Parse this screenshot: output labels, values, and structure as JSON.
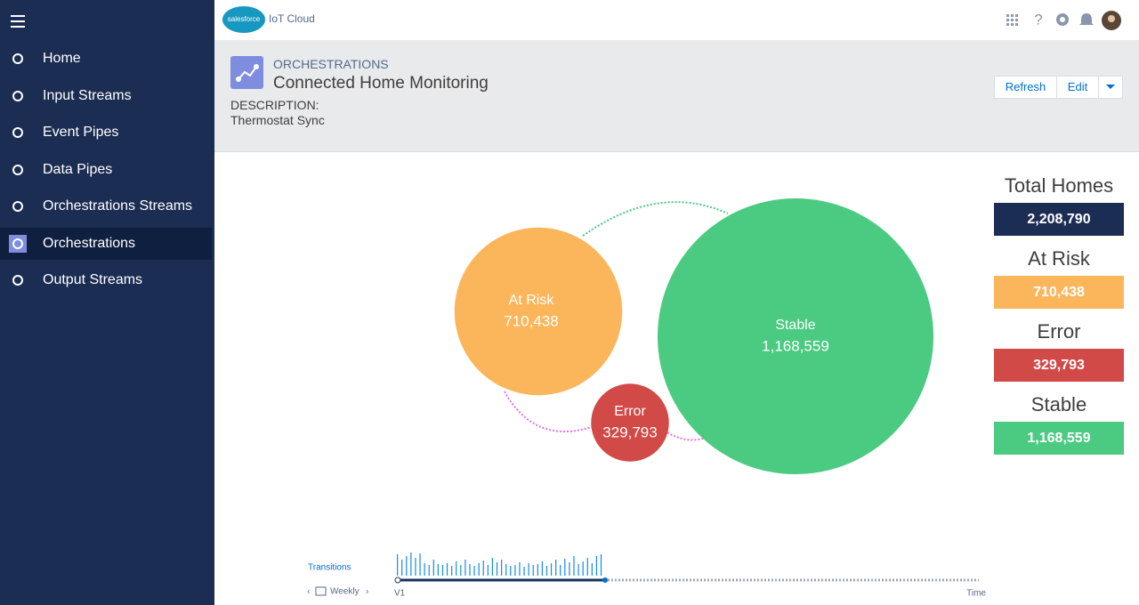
{
  "sidebar": {
    "items": [
      "Home",
      "Input Streams",
      "Event Pipes",
      "Data Pipes",
      "Orchestrations Streams",
      "Orchestrations",
      "Output Streams"
    ],
    "active": 5
  },
  "topbar": {
    "brand": "salesforce",
    "app": "IoT Cloud"
  },
  "header": {
    "eyebrow": "ORCHESTRATIONS",
    "title": "Connected Home Monitoring",
    "description_label": "DESCRIPTION:",
    "description": "Thermostat Sync",
    "buttons": [
      "Refresh",
      "Edit"
    ]
  },
  "summary": {
    "title": "Total Homes",
    "value": 2208790,
    "label": "2,208,790",
    "color": "#1b2d52"
  },
  "states": [
    {
      "name": "At Risk",
      "value": 710438,
      "label": "710,438",
      "color": "#fbb65c"
    },
    {
      "name": "Error",
      "value": 329793,
      "label": "329,793",
      "color": "#d24a47"
    },
    {
      "name": "Stable",
      "value": 1168559,
      "label": "1,168,559",
      "color": "#4bca81"
    }
  ],
  "timeline": {
    "title": "Transitions",
    "period": "Weekly",
    "start": "V1",
    "end": "Time",
    "values": [
      24,
      18,
      22,
      26,
      20,
      25,
      14,
      12,
      18,
      13,
      12,
      14,
      11,
      16,
      12,
      18,
      13,
      11,
      14,
      17,
      12,
      20,
      15,
      18,
      13,
      11,
      12,
      15,
      10,
      14,
      12,
      13,
      16,
      11,
      14,
      18,
      12,
      19,
      15,
      22,
      13,
      16,
      20,
      14,
      22,
      24
    ]
  }
}
